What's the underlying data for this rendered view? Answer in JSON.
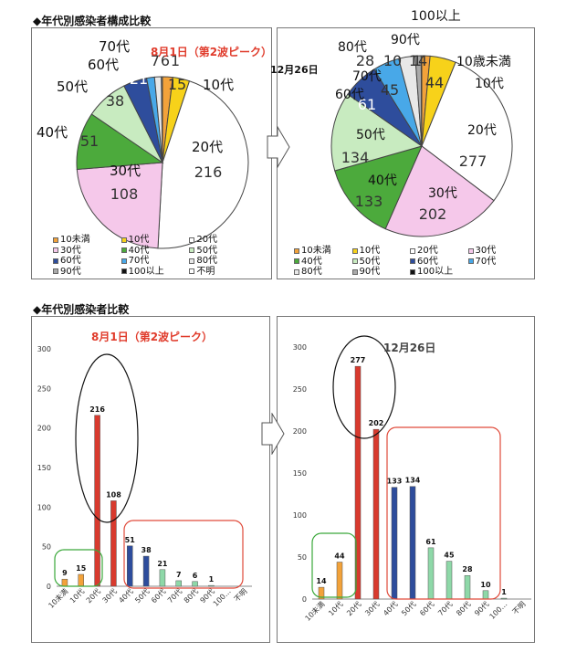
{
  "section1_title": "◆年代別感染者構成比較",
  "section2_title": "◆年代別感染者比較",
  "pie1": {
    "title": "8月1日（第2波ピーク）",
    "legend": [
      "10未満",
      "10代",
      "20代",
      "30代",
      "40代",
      "50代",
      "60代",
      "70代",
      "80代",
      "90代",
      "100以上",
      "不明"
    ]
  },
  "pie2": {
    "title": "12月26日",
    "legend": [
      "10未満",
      "10代",
      "20代",
      "30代",
      "40代",
      "50代",
      "60代",
      "70代",
      "80代",
      "90代",
      "100以上"
    ]
  },
  "bar1": {
    "title": "8月1日（第2波ピーク）"
  },
  "bar2": {
    "title": "12月26日"
  },
  "colors": {
    "u10": "#f2a23a",
    "d10": "#f7d21a",
    "d20": "#ffffff",
    "d30": "#f5c8ea",
    "d40": "#4caa3c",
    "d50": "#c8ebc0",
    "d60": "#2e4d9c",
    "d70": "#48a8e8",
    "d80": "#e8e8e8",
    "d90": "#aaaaaa",
    "d100": "#111111",
    "bar_red": "#d83a2e",
    "bar_orange": "#f2a23a",
    "bar_blue": "#2e4d9c",
    "bar_green": "#8ed8a8",
    "title_red": "#e03c2c"
  },
  "chart_data": [
    {
      "type": "pie",
      "title": "8月1日（第2波ピーク）",
      "slices": [
        {
          "label": "10歳未満",
          "value": 9
        },
        {
          "label": "10代",
          "value": 15
        },
        {
          "label": "20代",
          "value": 216
        },
        {
          "label": "30代",
          "value": 108
        },
        {
          "label": "40代",
          "value": 51
        },
        {
          "label": "50代",
          "value": 38
        },
        {
          "label": "60代",
          "value": 21
        },
        {
          "label": "70代",
          "value": 7
        },
        {
          "label": "80代",
          "value": 6
        },
        {
          "label": "90代",
          "value": 1
        }
      ]
    },
    {
      "type": "pie",
      "title": "12月26日",
      "slices": [
        {
          "label": "10歳未満",
          "value": 14
        },
        {
          "label": "10代",
          "value": 44
        },
        {
          "label": "20代",
          "value": 277
        },
        {
          "label": "30代",
          "value": 202
        },
        {
          "label": "40代",
          "value": 133
        },
        {
          "label": "50代",
          "value": 134
        },
        {
          "label": "60代",
          "value": 61
        },
        {
          "label": "70代",
          "value": 45
        },
        {
          "label": "80代",
          "value": 28
        },
        {
          "label": "90代",
          "value": 10
        },
        {
          "label": "100以上",
          "value": 1
        }
      ]
    },
    {
      "type": "bar",
      "title": "8月1日（第2波ピーク）",
      "categories": [
        "10未満",
        "10代",
        "20代",
        "30代",
        "40代",
        "50代",
        "60代",
        "70代",
        "80代",
        "90代",
        "100…",
        "不明"
      ],
      "values": [
        9,
        15,
        216,
        108,
        51,
        38,
        21,
        7,
        6,
        1,
        0,
        0
      ],
      "labels": [
        "9",
        "15",
        "216",
        "108",
        "51",
        "38",
        "21",
        "7",
        "6",
        "1",
        "",
        ""
      ],
      "ylim": [
        0,
        300
      ],
      "yticks": [
        "0",
        "50",
        "100",
        "150",
        "200",
        "250",
        "300"
      ]
    },
    {
      "type": "bar",
      "title": "12月26日",
      "categories": [
        "10未満",
        "10代",
        "20代",
        "30代",
        "40代",
        "50代",
        "60代",
        "70代",
        "80代",
        "90代",
        "100…",
        "不明"
      ],
      "values": [
        14,
        44,
        277,
        202,
        133,
        134,
        61,
        45,
        28,
        10,
        1,
        0
      ],
      "labels": [
        "14",
        "44",
        "277",
        "202",
        "133",
        "134",
        "61",
        "45",
        "28",
        "10",
        "1",
        ""
      ],
      "ylim": [
        0,
        300
      ],
      "yticks": [
        "0",
        "50",
        "100",
        "150",
        "200",
        "250",
        "300"
      ]
    }
  ]
}
